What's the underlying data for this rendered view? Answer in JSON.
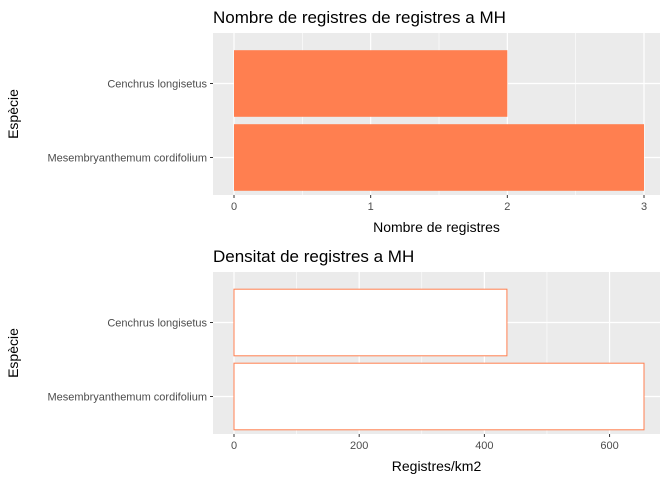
{
  "chart_data": [
    {
      "type": "bar",
      "orientation": "horizontal",
      "title": "Nombre de registres de registres a MH",
      "xlabel": "Nombre de registres",
      "ylabel": "Espècie",
      "categories": [
        "Mesembryanthemum cordifolium",
        "Cenchrus longisetus"
      ],
      "values": [
        3,
        2
      ],
      "xlim": [
        0,
        3
      ],
      "xticks": [
        0,
        1,
        2,
        3
      ],
      "grid": true,
      "bar_style": "filled",
      "color": "#FF7F50"
    },
    {
      "type": "bar",
      "orientation": "horizontal",
      "title": "Densitat de registres a MH",
      "xlabel": "Registres/km2",
      "ylabel": "Espècie",
      "categories": [
        "Mesembryanthemum cordifolium",
        "Cenchrus longisetus"
      ],
      "values": [
        655,
        436
      ],
      "xlim": [
        0,
        655
      ],
      "xticks": [
        0,
        200,
        400,
        600
      ],
      "grid": true,
      "bar_style": "outline",
      "color": "#FF7F50"
    }
  ]
}
